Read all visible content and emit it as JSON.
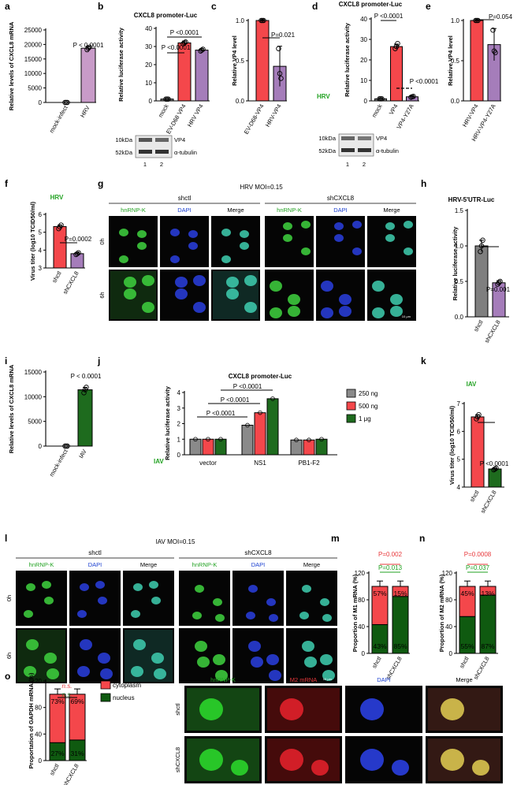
{
  "panel_letters": [
    "a",
    "b",
    "c",
    "d",
    "e",
    "f",
    "g",
    "h",
    "i",
    "j",
    "k",
    "l",
    "m",
    "n",
    "o",
    "p"
  ],
  "colors": {
    "mock": "#7f7f7f",
    "hrv": "#c89bc8",
    "ev": "#e8383b",
    "gray": "#8a8a8a",
    "red": "#f4474b",
    "purple": "#a57dba",
    "green": "#1e6b1e",
    "green_dark": "#0f5a10",
    "pink_text": "#e8383b",
    "green_text": "#22a222",
    "blue_text": "#1a3fd0"
  },
  "a": {
    "ylabel": "Relative levels of CXCL8 mRNA",
    "yticks": [
      "0",
      "5000",
      "10000",
      "15000",
      "20000",
      "25000"
    ],
    "categories": [
      "mock-infect",
      "HRV"
    ],
    "values": [
      1,
      18700
    ],
    "pval": "P < 0.0001"
  },
  "b": {
    "title": "CXCL8 promoter-Luc",
    "ylabel": "Relative luciferase activity",
    "yticks": [
      "0",
      "10",
      "20",
      "30",
      "40"
    ],
    "categories": [
      "mock",
      "EV-D68 VP4",
      "HRV VP4"
    ],
    "values": [
      1,
      32,
      28
    ],
    "p1": "P <0.0001",
    "p2": "P <0.0001",
    "blot_labels": [
      "10kDa",
      "52kDa"
    ],
    "blot_right": [
      "VP4",
      "α-tubulin"
    ],
    "lanes": [
      "1",
      "2"
    ]
  },
  "c": {
    "ylabel": "Relative VP4 level",
    "yticks": [
      "0.0",
      "0.5",
      "1.0"
    ],
    "categories": [
      "EV-D68-VP4",
      "HRV-VP4"
    ],
    "values": [
      1.0,
      0.43
    ],
    "pval": "P=0.021"
  },
  "d": {
    "title": "CXCL8 promoter-Luc",
    "ylabel": "Relative luciferase activity",
    "yticks": [
      "0",
      "10",
      "20",
      "30",
      "40"
    ],
    "categories": [
      "mock",
      "VP4",
      "VP4-Y27A"
    ],
    "values": [
      1,
      26.5,
      2
    ],
    "p1": "P <0.0001",
    "p2": "P <0.0001",
    "tag": "HRV",
    "blot_labels": [
      "10kDa",
      "52kDa"
    ],
    "blot_right": [
      "VP4",
      "α-tubulin"
    ],
    "lanes": [
      "1",
      "2"
    ]
  },
  "e": {
    "ylabel": "Relative VP4 level",
    "yticks": [
      "0.0",
      "0.5",
      "1.0"
    ],
    "categories": [
      "HRV-VP4",
      "HRV-VP4-Y27A"
    ],
    "values": [
      1.0,
      0.7
    ],
    "pval": "P=0.054"
  },
  "f": {
    "tag": "HRV",
    "ylabel": "Virus titer (log10 TCID50/ml)",
    "yticks": [
      "3",
      "4",
      "5",
      "6"
    ],
    "categories": [
      "shctl",
      "shCXCL8"
    ],
    "values": [
      5.32,
      3.8
    ],
    "pval": "P=0.0002"
  },
  "g": {
    "title": "HRV MOI=0.15",
    "groups": [
      "shctl",
      "shCXCL8"
    ],
    "channels": [
      "hnRNP-K",
      "DAPI",
      "Merge"
    ],
    "rows": [
      "0h",
      "6h"
    ],
    "scale": "10 μm"
  },
  "h": {
    "title": "HRV-5'UTR-Luc",
    "ylabel": "Relative luciferase activity",
    "yticks": [
      "0.0",
      "0.5",
      "1.0",
      "1.5"
    ],
    "categories": [
      "shctl",
      "shCXCL8"
    ],
    "values": [
      1.0,
      0.48
    ],
    "pval": "P=0.001"
  },
  "i": {
    "ylabel": "Relative levels of CXCL8 mRNA",
    "yticks": [
      "0",
      "5000",
      "10000",
      "15000"
    ],
    "categories": [
      "mock-infect",
      "IAV"
    ],
    "values": [
      1,
      11400
    ],
    "pval": "P < 0.0001"
  },
  "j": {
    "title": "CXCL8 promoter-Luc",
    "ylabel": "Relative luciferase activity",
    "yticks": [
      "0",
      "1",
      "2",
      "3",
      "4"
    ],
    "categories": [
      "vector",
      "NS1",
      "PB1-F2"
    ],
    "series": [
      {
        "name": "250 ng",
        "values": [
          1,
          1.9,
          0.95
        ]
      },
      {
        "name": "500 ng",
        "values": [
          1,
          2.7,
          0.95
        ]
      },
      {
        "name": "1 μg",
        "values": [
          1,
          3.6,
          1.0
        ]
      }
    ],
    "pvals": [
      "P <0.0001",
      "P <0.0001",
      "P <0.0001"
    ],
    "tag": "IAV"
  },
  "k": {
    "tag": "IAV",
    "ylabel": "Virus titer (log10 TCID50/ml)",
    "yticks": [
      "4",
      "5",
      "6",
      "7"
    ],
    "categories": [
      "shctl",
      "shCXCL8"
    ],
    "values": [
      6.52,
      4.65
    ],
    "pval": "P <0.0001"
  },
  "l": {
    "title": "IAV MOI=0.15",
    "groups": [
      "shctl",
      "shCXCL8"
    ],
    "channels": [
      "hnRNP-K",
      "DAPI",
      "Merge"
    ],
    "rows": [
      "0h",
      "6h"
    ],
    "scale": "10 μm"
  },
  "m": {
    "ylabel": "Proportion of M1 mRNA (%)",
    "yticks": [
      "0",
      "40",
      "80",
      "120"
    ],
    "categories": [
      "shctl",
      "shCXCL8"
    ],
    "nucleus": [
      43,
      85
    ],
    "cytoplasm": [
      57,
      15
    ],
    "nuc_labels": [
      "43%",
      "85%"
    ],
    "cyto_labels": [
      "57%",
      "15%"
    ],
    "p_red": "P=0.002",
    "p_green": "P=0.013"
  },
  "n": {
    "ylabel": "Proportion of M2 mRNA (%)",
    "yticks": [
      "0",
      "40",
      "80",
      "120"
    ],
    "categories": [
      "shctl",
      "shCXCL8"
    ],
    "nucleus": [
      55,
      87
    ],
    "cytoplasm": [
      45,
      13
    ],
    "nuc_labels": [
      "55%",
      "87%"
    ],
    "cyto_labels": [
      "45%",
      "13%"
    ],
    "p_red": "P=0.0008",
    "p_green": "P=0.037"
  },
  "o": {
    "ylabel": "Proportation of GAPDH mRNA (%)",
    "yticks": [
      "0",
      "40",
      "80",
      "120"
    ],
    "categories": [
      "shctl",
      "shCXCL8"
    ],
    "nucleus": [
      27,
      31
    ],
    "cytoplasm": [
      73,
      69
    ],
    "nuc_labels": [
      "27%",
      "31%"
    ],
    "cyto_labels": [
      "73%",
      "69%"
    ],
    "ns_red": "n.s.",
    "ns_green": "n.s.",
    "legend": [
      "cytoplasm",
      "nucleus"
    ]
  },
  "p": {
    "channels": [
      "hnRNP-K",
      "M2 mRNA",
      "DAPI",
      "Merge"
    ],
    "rows": [
      "shctl",
      "shCXCL8"
    ]
  },
  "chart_data": [
    {
      "type": "bar",
      "panel": "a",
      "categories": [
        "mock-infect",
        "HRV"
      ],
      "values": [
        1,
        18700
      ],
      "ylabel": "Relative levels of CXCL8 mRNA",
      "ylim": [
        0,
        25000
      ]
    },
    {
      "type": "bar",
      "panel": "b",
      "title": "CXCL8 promoter-Luc",
      "categories": [
        "mock",
        "EV-D68 VP4",
        "HRV VP4"
      ],
      "values": [
        1,
        32,
        28
      ],
      "ylabel": "Relative luciferase activity",
      "ylim": [
        0,
        40
      ]
    },
    {
      "type": "bar",
      "panel": "c",
      "categories": [
        "EV-D68-VP4",
        "HRV-VP4"
      ],
      "values": [
        1.0,
        0.43
      ],
      "ylabel": "Relative VP4 level",
      "ylim": [
        0,
        1
      ]
    },
    {
      "type": "bar",
      "panel": "d",
      "title": "CXCL8 promoter-Luc",
      "categories": [
        "mock",
        "VP4",
        "VP4-Y27A"
      ],
      "values": [
        1,
        26.5,
        2
      ],
      "ylabel": "Relative luciferase activity",
      "ylim": [
        0,
        40
      ]
    },
    {
      "type": "bar",
      "panel": "e",
      "categories": [
        "HRV-VP4",
        "HRV-VP4-Y27A"
      ],
      "values": [
        1.0,
        0.7
      ],
      "ylabel": "Relative VP4 level",
      "ylim": [
        0,
        1
      ]
    },
    {
      "type": "bar",
      "panel": "f",
      "categories": [
        "shctl",
        "shCXCL8"
      ],
      "values": [
        5.32,
        3.8
      ],
      "ylim": [
        3,
        6
      ]
    },
    {
      "type": "bar",
      "panel": "h",
      "title": "HRV-5'UTR-Luc",
      "categories": [
        "shctl",
        "shCXCL8"
      ],
      "values": [
        1.0,
        0.48
      ],
      "ylabel": "Relative luciferase activity",
      "ylim": [
        0,
        1.5
      ]
    },
    {
      "type": "bar",
      "panel": "i",
      "categories": [
        "mock-infect",
        "IAV"
      ],
      "values": [
        1,
        11400
      ],
      "ylabel": "Relative levels of CXCL8 mRNA",
      "ylim": [
        0,
        15000
      ]
    },
    {
      "type": "bar",
      "panel": "j",
      "title": "CXCL8 promoter-Luc",
      "categories": [
        "vector",
        "NS1",
        "PB1-F2"
      ],
      "series": [
        {
          "name": "250 ng",
          "values": [
            1,
            1.9,
            0.95
          ]
        },
        {
          "name": "500 ng",
          "values": [
            1,
            2.7,
            0.95
          ]
        },
        {
          "name": "1 μg",
          "values": [
            1,
            3.6,
            1.0
          ]
        }
      ],
      "ylabel": "Relative luciferase activity",
      "ylim": [
        0,
        4
      ]
    },
    {
      "type": "bar",
      "panel": "k",
      "categories": [
        "shctl",
        "shCXCL8"
      ],
      "values": [
        6.52,
        4.65
      ],
      "ylim": [
        4,
        7
      ]
    },
    {
      "type": "bar",
      "panel": "m",
      "categories": [
        "shctl",
        "shCXCL8"
      ],
      "series": [
        {
          "name": "nucleus",
          "values": [
            43,
            85
          ]
        },
        {
          "name": "cytoplasm",
          "values": [
            57,
            15
          ]
        }
      ],
      "ylabel": "Proportion of M1 mRNA (%)",
      "ylim": [
        0,
        120
      ]
    },
    {
      "type": "bar",
      "panel": "n",
      "categories": [
        "shctl",
        "shCXCL8"
      ],
      "series": [
        {
          "name": "nucleus",
          "values": [
            55,
            87
          ]
        },
        {
          "name": "cytoplasm",
          "values": [
            45,
            13
          ]
        }
      ],
      "ylabel": "Proportion of M2 mRNA (%)",
      "ylim": [
        0,
        120
      ]
    },
    {
      "type": "bar",
      "panel": "o",
      "categories": [
        "shctl",
        "shCXCL8"
      ],
      "series": [
        {
          "name": "nucleus",
          "values": [
            27,
            31
          ]
        },
        {
          "name": "cytoplasm",
          "values": [
            73,
            69
          ]
        }
      ],
      "ylabel": "Proportation of GAPDH mRNA (%)",
      "ylim": [
        0,
        120
      ]
    }
  ]
}
